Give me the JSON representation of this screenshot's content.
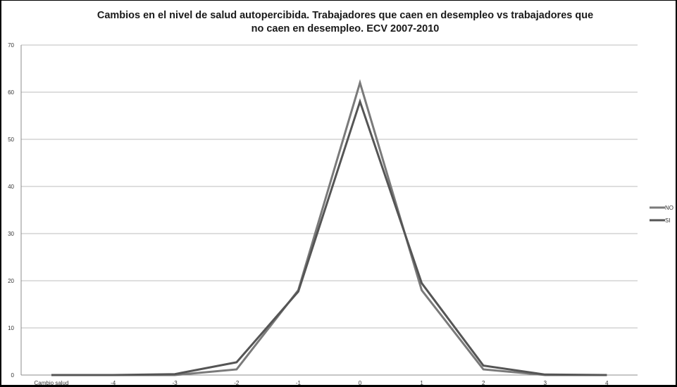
{
  "chart_data": {
    "type": "line",
    "title_lines": [
      "Cambios en el nivel de salud autopercibida. Trabajadores que caen en desempleo vs trabajadores que",
      "no caen en desempleo. ECV 2007-2010"
    ],
    "categories": [
      "Cambio salud",
      "-4",
      "-3",
      "-2",
      "-1",
      "0",
      "1",
      "2",
      "3",
      "4"
    ],
    "series": [
      {
        "name": "NO",
        "color": "#7a7a7a",
        "values": [
          0,
          0,
          0,
          1.2,
          18,
          62,
          18,
          1.2,
          0,
          0
        ]
      },
      {
        "name": "SI",
        "color": "#555555",
        "values": [
          0,
          0,
          0.2,
          2.7,
          17.7,
          58,
          19.5,
          2,
          0.1,
          0
        ]
      }
    ],
    "ylim": [
      0,
      70
    ],
    "yticks": [
      0,
      10,
      20,
      30,
      40,
      50,
      60,
      70
    ],
    "grid": true,
    "legend_position": "right"
  }
}
